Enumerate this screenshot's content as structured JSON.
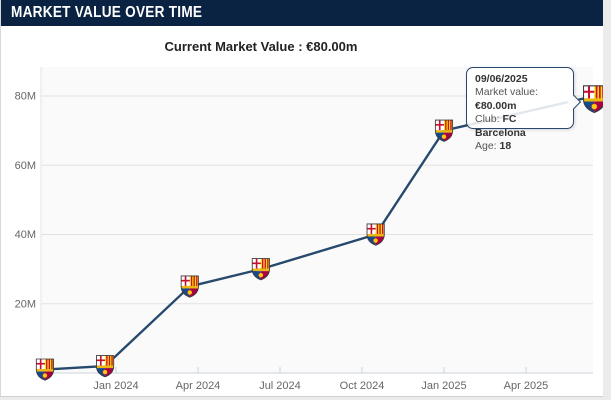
{
  "widget": {
    "title": "MARKET VALUE OVER TIME",
    "current_value_text": "Current Market Value : €80.00m"
  },
  "tooltip": {
    "date": "09/06/2025",
    "rows": [
      {
        "label": "Market value:",
        "value": "€80.00m"
      },
      {
        "label": "Club:",
        "value": "FC Barcelona"
      },
      {
        "label": "Age:",
        "value": "18"
      }
    ]
  },
  "chart_data": {
    "type": "line",
    "title": "Market value over time",
    "xlabel": "",
    "ylabel": "",
    "ylim": [
      0,
      88
    ],
    "grid": "horizontal",
    "legend": "none",
    "marker": "fc-barcelona-crest",
    "line_color": "#26496d",
    "x_ticks": [
      "Jan 2024",
      "Apr 2024",
      "Jul 2024",
      "Oct 2024",
      "Jan 2025",
      "Apr 2025"
    ],
    "y_ticks": [
      "20M",
      "40M",
      "60M",
      "80M"
    ],
    "series": [
      {
        "name": "Market value (€ millions)",
        "points": [
          {
            "date": "Oct 2023",
            "value_m": 1,
            "x_months_from_jan2024": -2.6
          },
          {
            "date": "Dec 2023",
            "value_m": 2,
            "x_months_from_jan2024": -0.4
          },
          {
            "date": "Mar 2024",
            "value_m": 25,
            "x_months_from_jan2024": 2.7
          },
          {
            "date": "Jun 2024",
            "value_m": 30,
            "x_months_from_jan2024": 5.3
          },
          {
            "date": "Oct 2024",
            "value_m": 40,
            "x_months_from_jan2024": 9.5
          },
          {
            "date": "Jan 2025",
            "value_m": 70,
            "x_months_from_jan2024": 12.0
          },
          {
            "date": "09/06/2025",
            "value_m": 80,
            "x_months_from_jan2024": 17.5
          }
        ]
      }
    ]
  },
  "colors": {
    "header_bg": "#0b2343",
    "line": "#26496d",
    "grid": "#e2e2e2",
    "axis": "#ccd3d9",
    "y_axis": "#e4e4e4",
    "plot_bg": "#fafafa",
    "label": "#666666",
    "page_bg": "#ebebeb",
    "crest_blue": "#134a8e",
    "crest_garnet": "#a50044",
    "crest_yellow": "#fcdd09",
    "crest_red": "#c8102e",
    "crest_gold": "#edb70f"
  }
}
